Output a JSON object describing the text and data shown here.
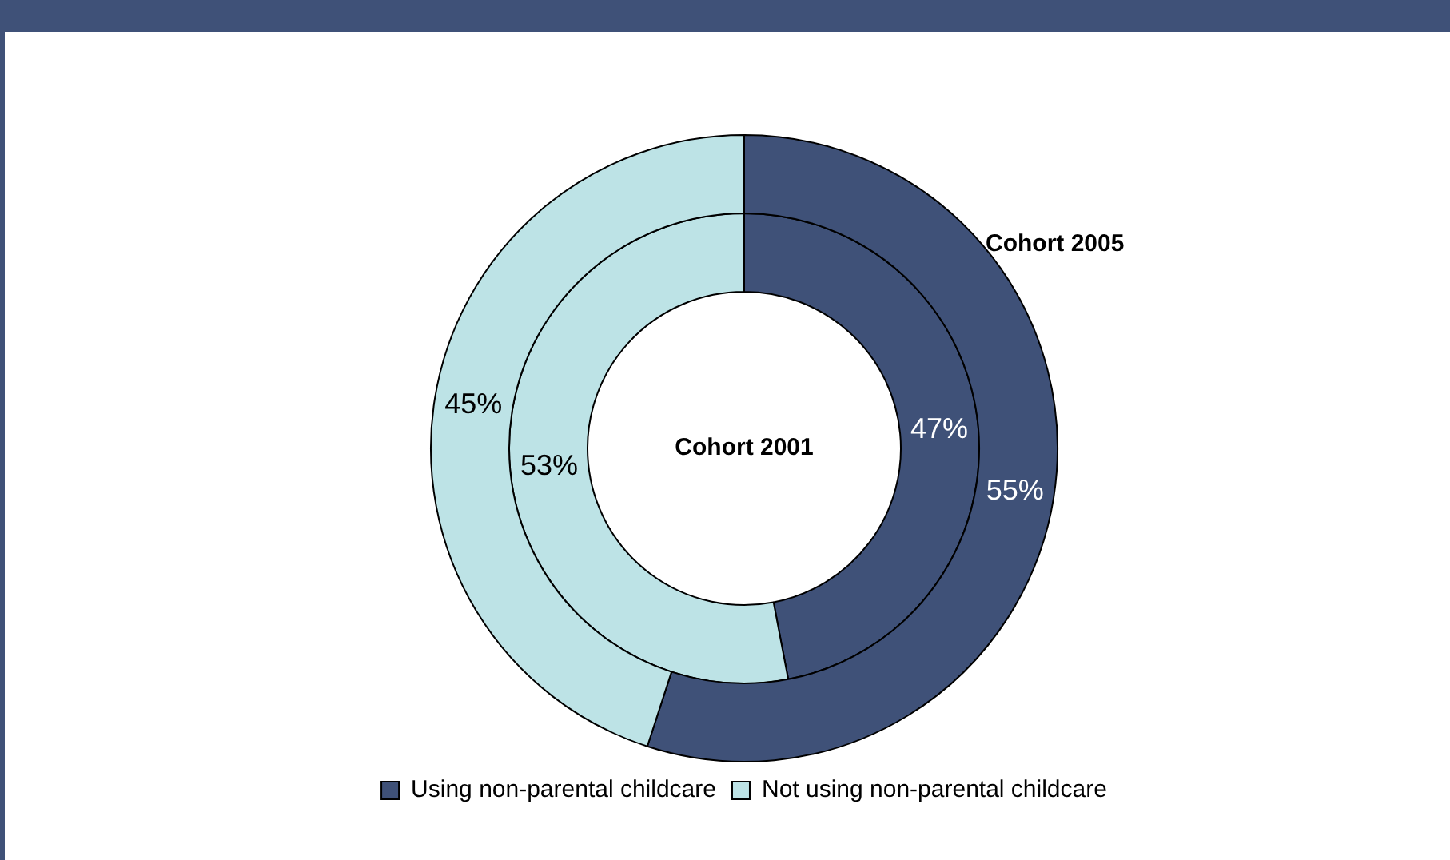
{
  "chart_data": {
    "type": "donut",
    "categories": [
      "Using non-parental childcare",
      "Not using non-parental childcare"
    ],
    "colors": [
      "#3f5178",
      "#bde3e6"
    ],
    "series": [
      {
        "name": "Cohort 2005",
        "values": [
          55,
          45
        ],
        "value_labels": [
          "55%",
          "45%"
        ]
      },
      {
        "name": "Cohort 2001",
        "values": [
          47,
          53
        ],
        "value_labels": [
          "47%",
          "53%"
        ]
      }
    ],
    "legend": "bottom"
  }
}
